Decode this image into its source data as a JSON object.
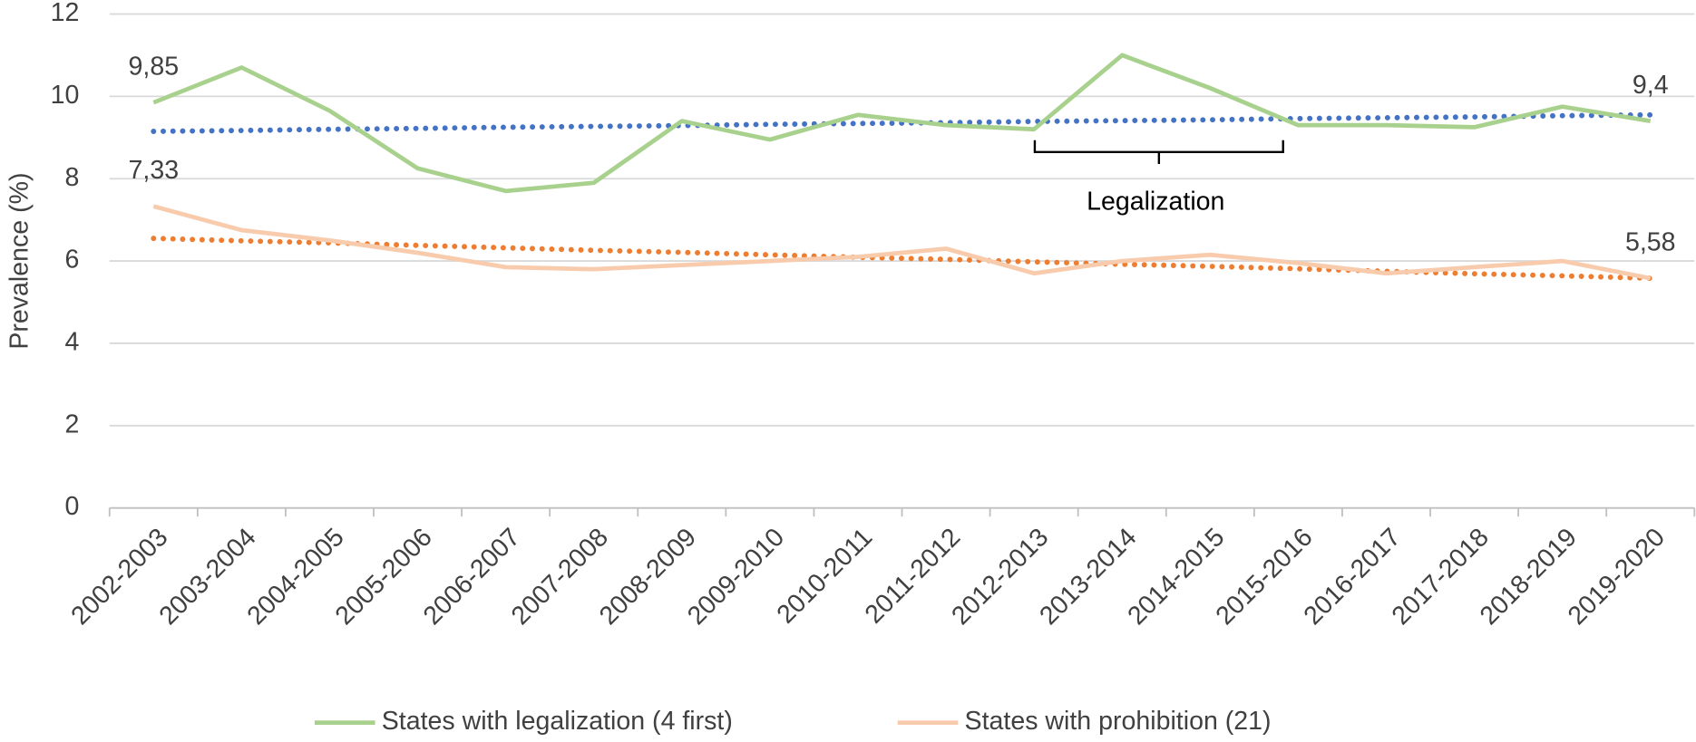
{
  "chart_data": {
    "type": "line",
    "y_label": "Prevalence (%)",
    "categories": [
      "2002-2003",
      "2003-2004",
      "2004-2005",
      "2005-2006",
      "2006-2007",
      "2007-2008",
      "2008-2009",
      "2009-2010",
      "2010-2011",
      "2011-2012",
      "2012-2013",
      "2013-2014",
      "2014-2015",
      "2015-2016",
      "2016-2017",
      "2017-2018",
      "2018-2019",
      "2019-2020"
    ],
    "series": [
      {
        "name": "States with legalization (4 first)",
        "color": "#a9d18e",
        "values": [
          9.85,
          10.7,
          9.65,
          8.25,
          7.7,
          7.9,
          9.4,
          8.95,
          9.55,
          9.3,
          9.2,
          11.0,
          10.2,
          9.3,
          9.3,
          9.25,
          9.75,
          9.4
        ],
        "value_labels": [
          "9,85",
          null,
          null,
          null,
          null,
          null,
          null,
          null,
          null,
          null,
          null,
          null,
          null,
          null,
          null,
          null,
          null,
          "9,4"
        ]
      },
      {
        "name": "States with prohibition (21)",
        "color": "#f8cbad",
        "values": [
          7.33,
          6.75,
          6.5,
          6.2,
          5.85,
          5.8,
          5.9,
          6.0,
          6.1,
          6.3,
          5.7,
          6.0,
          6.15,
          5.95,
          5.7,
          5.85,
          6.0,
          5.58
        ],
        "value_labels": [
          "7,33",
          null,
          null,
          null,
          null,
          null,
          null,
          null,
          null,
          null,
          null,
          null,
          null,
          null,
          null,
          null,
          null,
          "5,58"
        ]
      }
    ],
    "trendlines": [
      {
        "color": "#4472c4",
        "values": [
          9.15,
          9.17,
          9.2,
          9.22,
          9.25,
          9.27,
          9.29,
          9.32,
          9.34,
          9.36,
          9.39,
          9.41,
          9.43,
          9.46,
          9.48,
          9.5,
          9.53,
          9.55
        ]
      },
      {
        "color": "#ed7d31",
        "values": [
          6.55,
          6.49,
          6.44,
          6.38,
          6.32,
          6.26,
          6.21,
          6.15,
          6.09,
          6.04,
          5.98,
          5.92,
          5.87,
          5.81,
          5.75,
          5.69,
          5.64,
          5.58
        ]
      }
    ],
    "annotation": "Legalization",
    "ylim": [
      0,
      12
    ],
    "yticks": [
      0,
      2,
      4,
      6,
      8,
      10,
      12
    ],
    "grid": true,
    "legend": "bottom"
  }
}
